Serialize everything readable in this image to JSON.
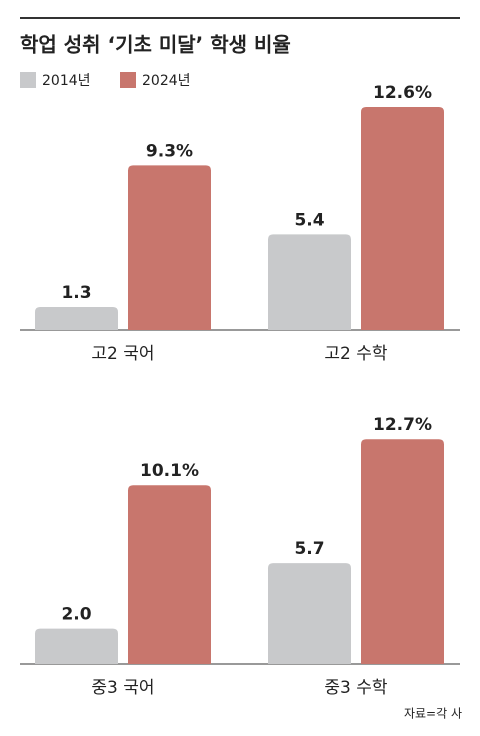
{
  "title": "학업 성취 ‘기초 미달’ 학생 비율",
  "source": "자료=각 사",
  "chart_data": [
    {
      "type": "bar",
      "categories": [
        "고2 국어",
        "고2 수학"
      ],
      "series": [
        {
          "name": "2014년",
          "color": "#c8c9cb",
          "values": [
            1.3,
            5.4
          ],
          "value_labels": [
            "1.3",
            "5.4"
          ]
        },
        {
          "name": "2024년",
          "color": "#c8766d",
          "values": [
            9.3,
            12.6
          ],
          "value_labels": [
            "9.3%",
            "12.6%"
          ]
        }
      ]
    },
    {
      "type": "bar",
      "categories": [
        "중3 국어",
        "중3 수학"
      ],
      "series": [
        {
          "color": "#c8c9cb",
          "values": [
            2.0,
            5.7
          ],
          "value_labels": [
            "2.0",
            "5.7"
          ]
        },
        {
          "color": "#c8766d",
          "values": [
            10.1,
            12.7
          ],
          "value_labels": [
            "10.1%",
            "12.7%"
          ]
        }
      ]
    }
  ]
}
